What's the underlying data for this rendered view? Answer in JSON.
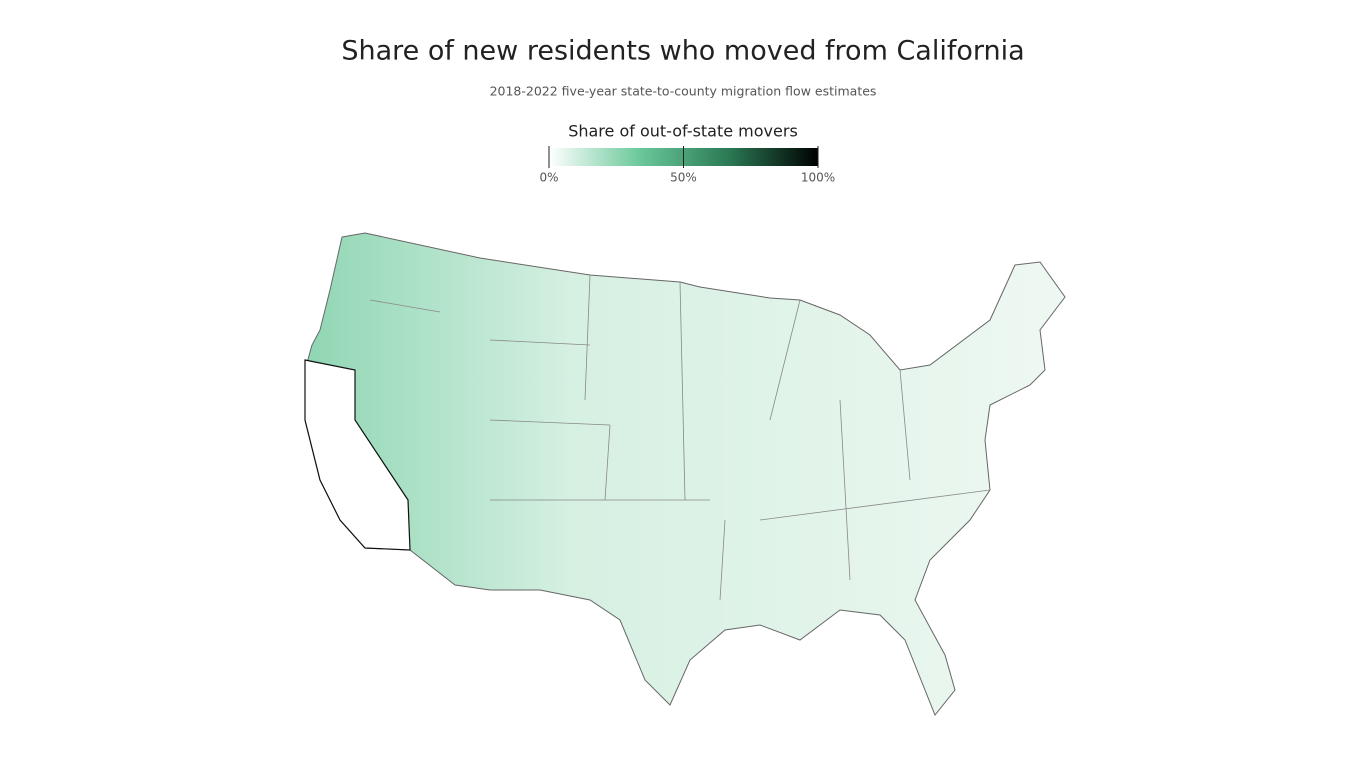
{
  "title": "Share of new residents who moved from California",
  "subtitle": "2018-2022 five-year state-to-county migration flow estimates",
  "legend": {
    "title": "Share of out-of-state movers",
    "range": [
      0,
      100
    ],
    "ticks": [
      {
        "value": 0,
        "label": "0%"
      },
      {
        "value": 50,
        "label": "50%"
      },
      {
        "value": 100,
        "label": "100%"
      }
    ],
    "colors": [
      "#ffffff",
      "#6cc99c",
      "#2b7a55",
      "#000000"
    ]
  }
}
